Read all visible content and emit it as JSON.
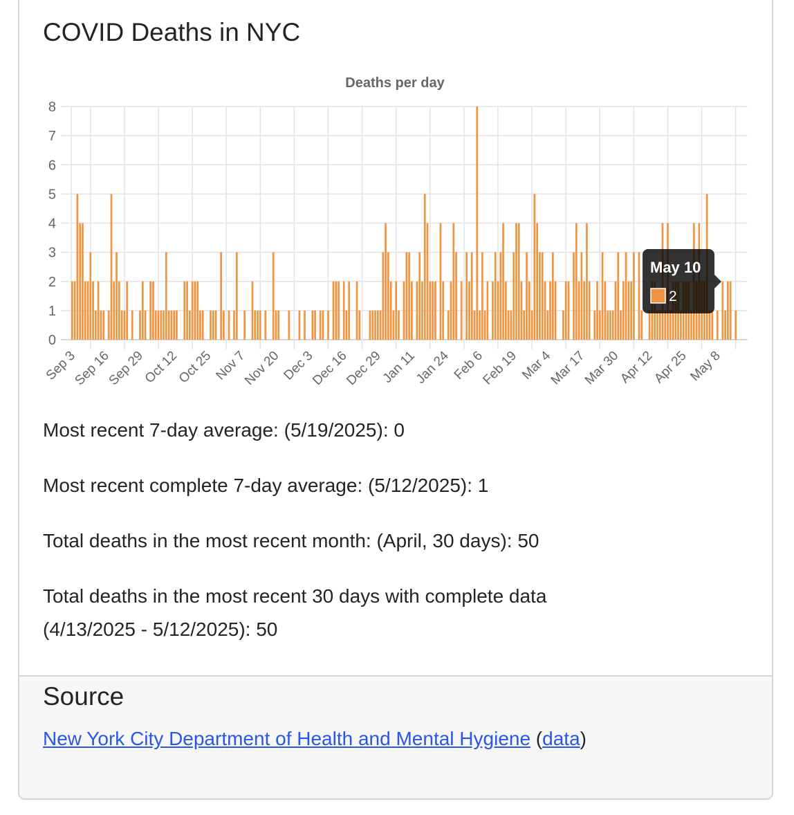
{
  "header": {
    "title": "COVID Deaths in NYC"
  },
  "chart_data": {
    "type": "bar",
    "title": "Deaths per day",
    "xlabel": "",
    "ylabel": "",
    "ylim": [
      0,
      8
    ],
    "yticks": [
      "0",
      "1",
      "2",
      "3",
      "4",
      "5",
      "6",
      "7",
      "8"
    ],
    "start_date": "Sep 3",
    "tick_labels": [
      "Sep 3",
      "Sep 16",
      "Sep 29",
      "Oct 12",
      "Oct 25",
      "Nov 7",
      "Nov 20",
      "Dec 3",
      "Dec 16",
      "Dec 29",
      "Jan 11",
      "Jan 24",
      "Feb 6",
      "Feb 19",
      "Mar 4",
      "Mar 17",
      "Mar 30",
      "Apr 12",
      "Apr 25",
      "May 8"
    ],
    "tick_every_days": 13,
    "grid": true,
    "bar_color": "#ef9441",
    "series": [
      {
        "name": "Deaths per day",
        "values": [
          2,
          2,
          5,
          4,
          4,
          2,
          2,
          3,
          2,
          1,
          2,
          1,
          1,
          0,
          1,
          5,
          2,
          3,
          2,
          1,
          1,
          2,
          0,
          1,
          0,
          0,
          1,
          2,
          1,
          0,
          2,
          2,
          1,
          1,
          1,
          1,
          3,
          1,
          1,
          1,
          1,
          0,
          0,
          2,
          2,
          1,
          2,
          2,
          2,
          1,
          1,
          0,
          0,
          1,
          1,
          1,
          0,
          3,
          1,
          0,
          1,
          0,
          1,
          3,
          0,
          0,
          1,
          0,
          0,
          2,
          1,
          1,
          1,
          0,
          1,
          0,
          0,
          3,
          1,
          1,
          0,
          0,
          0,
          1,
          0,
          0,
          0,
          1,
          0,
          1,
          0,
          0,
          1,
          1,
          0,
          1,
          1,
          0,
          1,
          0,
          2,
          2,
          2,
          0,
          2,
          1,
          2,
          0,
          0,
          2,
          1,
          0,
          0,
          0,
          1,
          1,
          1,
          1,
          1,
          3,
          4,
          3,
          2,
          1,
          2,
          1,
          0,
          2,
          3,
          3,
          2,
          0,
          2,
          3,
          2,
          5,
          4,
          2,
          2,
          2,
          0,
          4,
          2,
          0,
          1,
          2,
          4,
          3,
          0,
          2,
          0,
          3,
          2,
          3,
          1,
          8,
          1,
          3,
          1,
          2,
          0,
          2,
          3,
          2,
          3,
          4,
          2,
          1,
          1,
          3,
          4,
          4,
          2,
          1,
          3,
          2,
          1,
          5,
          4,
          3,
          3,
          2,
          1,
          2,
          3,
          2,
          0,
          0,
          1,
          2,
          2,
          0,
          3,
          4,
          2,
          3,
          2,
          4,
          2,
          0,
          1,
          2,
          1,
          3,
          2,
          1,
          1,
          1,
          2,
          3,
          1,
          2,
          3,
          2,
          2,
          3,
          0,
          3,
          1,
          0,
          0,
          1,
          2,
          2,
          1,
          1,
          4,
          1,
          4,
          1,
          2,
          2,
          2,
          1,
          2,
          2,
          2,
          1,
          4,
          2,
          4,
          2,
          2,
          5,
          1,
          1,
          0,
          1,
          0,
          2,
          1,
          2,
          2,
          0,
          1,
          0,
          0,
          0,
          0
        ]
      }
    ],
    "tooltip": {
      "title": "May 10",
      "value": "2"
    }
  },
  "stats": {
    "line1": "Most recent 7-day average: (5/19/2025): 0",
    "line2": "Most recent complete 7-day average: (5/12/2025): 1",
    "line3": "Total deaths in the most recent month: (April, 30 days): 50",
    "line4a": "Total deaths in the most recent 30 days with complete data",
    "line4b": "(4/13/2025 - 5/12/2025): 50"
  },
  "source": {
    "heading": "Source",
    "link_text": "New York City Department of Health and Mental Hygiene",
    "open_paren": " (",
    "data_link": "data",
    "close_paren": ")"
  }
}
